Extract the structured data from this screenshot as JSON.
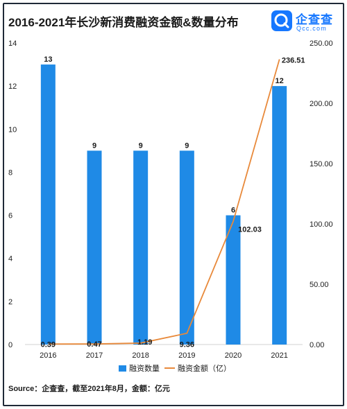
{
  "header": {
    "title": "2016-2021年长沙新消费融资金额&数量分布",
    "logo_cn": "企查查",
    "logo_en": "Qcc.com"
  },
  "footer": {
    "source": "Source：企查查，截至2021年8月，金额：亿元"
  },
  "colors": {
    "bar": "#1f8ae6",
    "line": "#e8893a",
    "brand": "#1677ff",
    "text": "#1a1a1a"
  },
  "chart_data": {
    "type": "bar",
    "categories": [
      "2016",
      "2017",
      "2018",
      "2019",
      "2020",
      "2021"
    ],
    "series": [
      {
        "name": "融资数量",
        "type": "bar",
        "axis": "left",
        "values": [
          13,
          9,
          9,
          9,
          6,
          12
        ],
        "labels": [
          "13",
          "9",
          "9",
          "9",
          "6",
          "12"
        ]
      },
      {
        "name": "融资金额（亿）",
        "type": "line",
        "axis": "right",
        "values": [
          0.39,
          0.47,
          1.19,
          9.36,
          102.03,
          236.51
        ],
        "labels": [
          "0.39",
          "0.47",
          "1.19",
          "9.36",
          "102.03",
          "236.51"
        ]
      }
    ],
    "y_left": {
      "min": 0,
      "max": 14,
      "ticks": [
        "0",
        "2",
        "4",
        "6",
        "8",
        "10",
        "12",
        "14"
      ]
    },
    "y_right": {
      "min": 0,
      "max": 250,
      "ticks": [
        "0.00",
        "50.00",
        "100.00",
        "150.00",
        "200.00",
        "250.00"
      ]
    },
    "grid": false,
    "legend": "bottom-center"
  }
}
